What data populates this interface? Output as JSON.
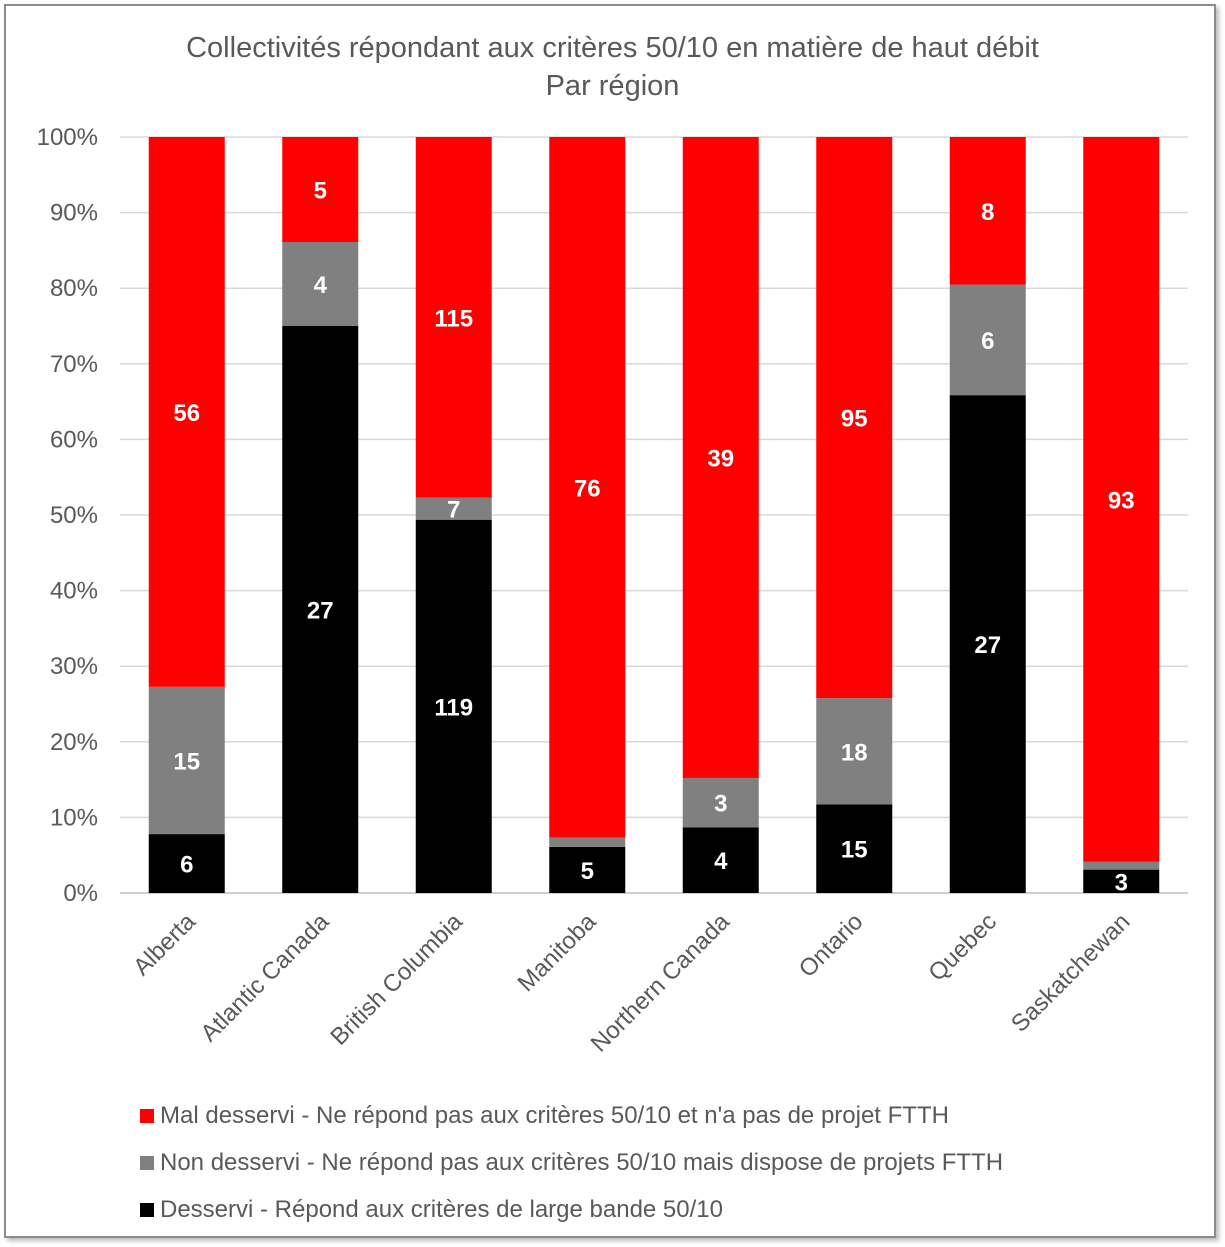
{
  "chart_data": {
    "type": "bar",
    "stacked": "percent",
    "title": "Collectivités répondant aux critères 50/10 en matière de haut débit",
    "subtitle": "Par région",
    "categories": [
      "Alberta",
      "Atlantic Canada",
      "British Columbia",
      "Manitoba",
      "Northern Canada",
      "Ontario",
      "Quebec",
      "Saskatchewan"
    ],
    "series": [
      {
        "name": "Desservi - Répond aux critères de large bande 50/10",
        "color": "#000000",
        "values": [
          6,
          27,
          119,
          5,
          4,
          15,
          27,
          3
        ],
        "labels": [
          "6",
          "27",
          "119",
          "5",
          "4",
          "15",
          "27",
          "3"
        ]
      },
      {
        "name": "Non desservi - Ne répond pas aux critères 50/10 mais dispose de projets FTTH",
        "color": "#808080",
        "values": [
          15,
          4,
          7,
          1,
          3,
          18,
          6,
          1
        ],
        "labels": [
          "15",
          "4",
          "7",
          "",
          "3",
          "18",
          "6",
          ""
        ]
      },
      {
        "name": "Mal desservi - Ne répond pas aux critères 50/10 et n'a pas de projet FTTH",
        "color": "#ff0000",
        "values": [
          56,
          5,
          115,
          76,
          39,
          95,
          8,
          93
        ],
        "labels": [
          "56",
          "5",
          "115",
          "76",
          "39",
          "95",
          "8",
          "93"
        ]
      }
    ],
    "y_ticks": [
      "0%",
      "10%",
      "20%",
      "30%",
      "40%",
      "50%",
      "60%",
      "70%",
      "80%",
      "90%",
      "100%"
    ],
    "ylim": [
      0,
      100
    ],
    "grid": true,
    "legend_position": "bottom",
    "legend_order": [
      2,
      1,
      0
    ]
  }
}
